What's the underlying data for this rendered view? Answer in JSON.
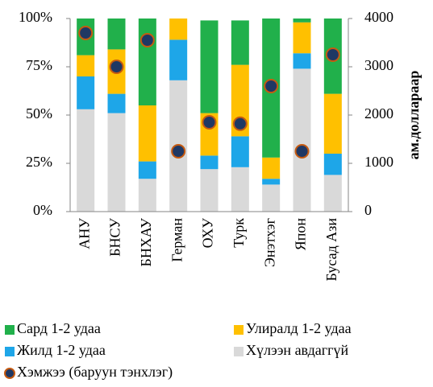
{
  "chart_data": {
    "type": "bar",
    "stacked": true,
    "y2_label": "ам.доллараар",
    "categories": [
      "АНУ",
      "БНСУ",
      "БНХАУ",
      "Герман",
      "ОХУ",
      "Турк",
      "Энэтхэг",
      "Япон",
      "Бусад Ази"
    ],
    "series": [
      {
        "name": "Сард 1-2 удаа",
        "color": "#21b04b",
        "values": [
          19,
          16,
          45,
          0,
          48,
          23,
          72,
          2,
          39
        ]
      },
      {
        "name": "Улиралд 1-2 удаа",
        "color": "#ffc000",
        "values": [
          11,
          23,
          29,
          11,
          22,
          37,
          11,
          16,
          31
        ]
      },
      {
        "name": "Жилд 1-2 удаа",
        "color": "#1ea6e8",
        "values": [
          17,
          10,
          9,
          21,
          7,
          16,
          3,
          8,
          11
        ]
      },
      {
        "name": "Хүлээн авдаггүй",
        "color": "#d9d9d9",
        "values": [
          53,
          51,
          17,
          68,
          22,
          23,
          14,
          74,
          19
        ]
      },
      {
        "name": "Хэмжээ (баруун тэнхлэг)",
        "color": "#1f3864",
        "edge_color": "#c55a11",
        "axis": "y2",
        "values": [
          3700,
          3000,
          3550,
          1250,
          1850,
          1820,
          2600,
          1250,
          3250
        ]
      }
    ],
    "ylim": [
      0,
      100
    ],
    "yticks": [
      {
        "value": 0,
        "label": "0%"
      },
      {
        "value": 25,
        "label": "25%"
      },
      {
        "value": 50,
        "label": "50%"
      },
      {
        "value": 75,
        "label": "75%"
      },
      {
        "value": 100,
        "label": "100%"
      }
    ],
    "y2lim": [
      0,
      4000
    ],
    "y2ticks": [
      0,
      1000,
      2000,
      3000,
      4000
    ]
  }
}
